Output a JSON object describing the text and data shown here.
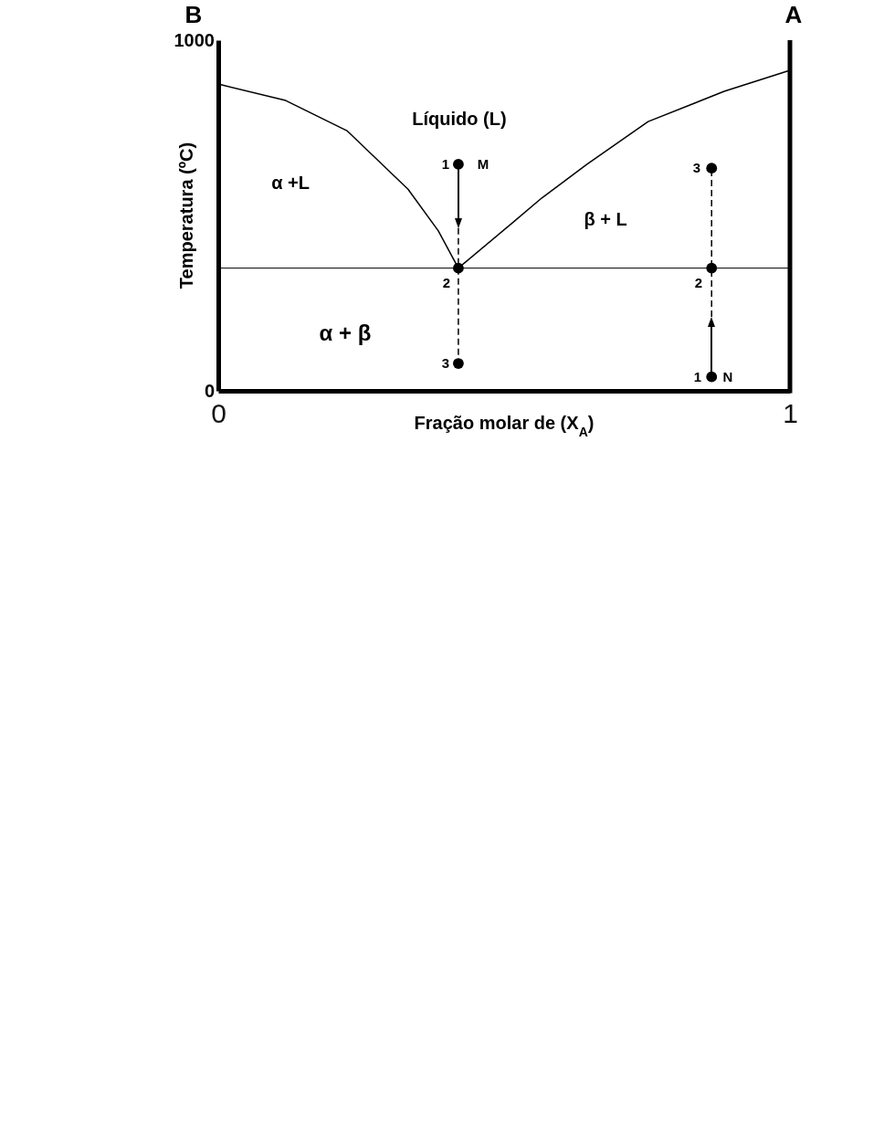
{
  "chart_data": {
    "type": "line",
    "xlabel": "Fração molar de (X$_{A}$)",
    "ylabel": "Temperatura (ºC)",
    "xlim": [
      0,
      1
    ],
    "xticks": [
      0,
      1
    ],
    "ylim": [
      0,
      1000
    ],
    "yticks": [
      0,
      1000
    ],
    "grid": false,
    "marker": "none",
    "series": [
      {
        "color": "#000000",
        "line_style": "solid",
        "x": [
          0,
          0.118,
          0.225,
          0.332,
          0.385,
          0.42
        ],
        "values": [
          875,
          828,
          742,
          575,
          456,
          350
        ]
      },
      {
        "color": "#000000",
        "line_style": "solid",
        "x": [
          0.42,
          0.513,
          0.566,
          0.645,
          0.752,
          0.885,
          1
        ],
        "values": [
          350,
          477,
          550,
          646,
          768,
          854,
          914
        ]
      },
      {
        "color": "#000000",
        "line_style": "dashed",
        "x": [
          0.42,
          0.42
        ],
        "values": [
          464,
          78
        ]
      },
      {
        "color": "#000000",
        "line_style": "dashed",
        "x": [
          0.863,
          0.863
        ],
        "values": [
          211,
          635
        ]
      },
      {
        "type": "scatter",
        "marker": "circle",
        "color": "#000000",
        "x": [
          0.42,
          0.42,
          0.42,
          0.863,
          0.863,
          0.863
        ],
        "values": [
          646,
          350,
          78,
          40,
          350,
          635
        ]
      }
    ],
    "ref_lines": [
      {
        "axis": "y",
        "value": 350,
        "color": "#000000"
      }
    ],
    "annotations": [
      "Líquido (L)",
      "α +L",
      "β + L",
      "α + β",
      "1",
      "M",
      "2",
      "3",
      "1",
      "N",
      "2",
      "3",
      "B",
      "A"
    ]
  }
}
